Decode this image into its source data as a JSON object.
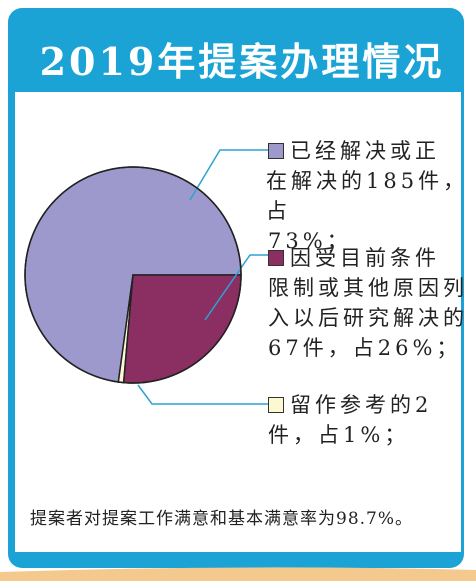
{
  "header": {
    "title": "2019年提案办理情况"
  },
  "colors": {
    "frame": "#1ba3d6",
    "slice_resolved": "#9d99cc",
    "slice_later": "#8b2f63",
    "slice_reference": "#fbf8d2",
    "leader_line": "#2aa3d3"
  },
  "chart_data": {
    "type": "pie",
    "title": "2019年提案办理情况",
    "slices": [
      {
        "label": "已经解决或正在解决",
        "count": 185,
        "percent": 73,
        "color": "#9d99cc"
      },
      {
        "label": "因受目前条件限制或其他原因列入以后研究解决",
        "count": 67,
        "percent": 26,
        "color": "#8b2f63"
      },
      {
        "label": "留作参考",
        "count": 2,
        "percent": 1,
        "color": "#fbf8d2"
      }
    ]
  },
  "legend": {
    "item1": {
      "line1": "已经解决或正",
      "line2": "在解决的185件，占",
      "line3": "73%；"
    },
    "item2": {
      "line1": "因受目前条件",
      "line2": "限制或其他原因列",
      "line3": "入以后研究解决的",
      "line4": "67件，占26%；"
    },
    "item3": {
      "line1": "留作参考的2",
      "line2": "件，占1%；"
    }
  },
  "footer": {
    "note": "提案者对提案工作满意和基本满意率为98.7%。"
  }
}
